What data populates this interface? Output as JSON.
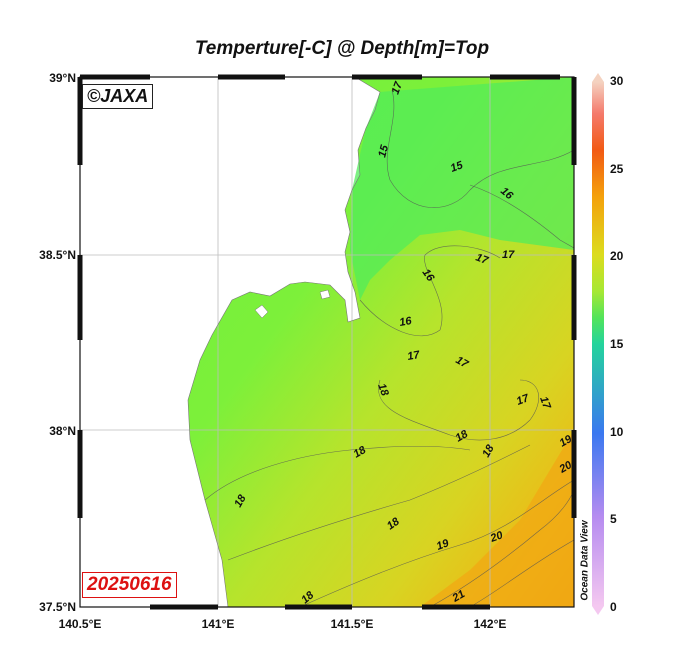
{
  "title": "Temperture[-C] @ Depth[m]=Top",
  "credit": "©JAXA",
  "date": "20250616",
  "watermark": "Ocean Data View",
  "latitude_labels": [
    "39°N",
    "38.5°N",
    "38°N",
    "37.5°N"
  ],
  "longitude_labels": [
    "140.5°E",
    "141°E",
    "141.5°E",
    "142°E"
  ],
  "colorbar": {
    "range": [
      0,
      30
    ],
    "tick_labels": [
      "30",
      "25",
      "20",
      "15",
      "10",
      "5",
      "0"
    ],
    "colors": [
      "#f4c8f0",
      "#b68cf0",
      "#3a78f0",
      "#24d49c",
      "#7cef3c",
      "#dcdc1e",
      "#f4a20c",
      "#f25a14",
      "#f47a6c",
      "#f4d2c0"
    ]
  },
  "map_extent": {
    "lon": [
      140.5,
      142.3
    ],
    "lat": [
      37.5,
      39.0
    ]
  },
  "contour_labels": [
    "17",
    "15",
    "15",
    "16",
    "17",
    "17",
    "16",
    "16",
    "17",
    "17",
    "18",
    "17",
    "17",
    "18",
    "18",
    "18",
    "19",
    "20",
    "18",
    "18",
    "19",
    "20",
    "21",
    "18"
  ]
}
